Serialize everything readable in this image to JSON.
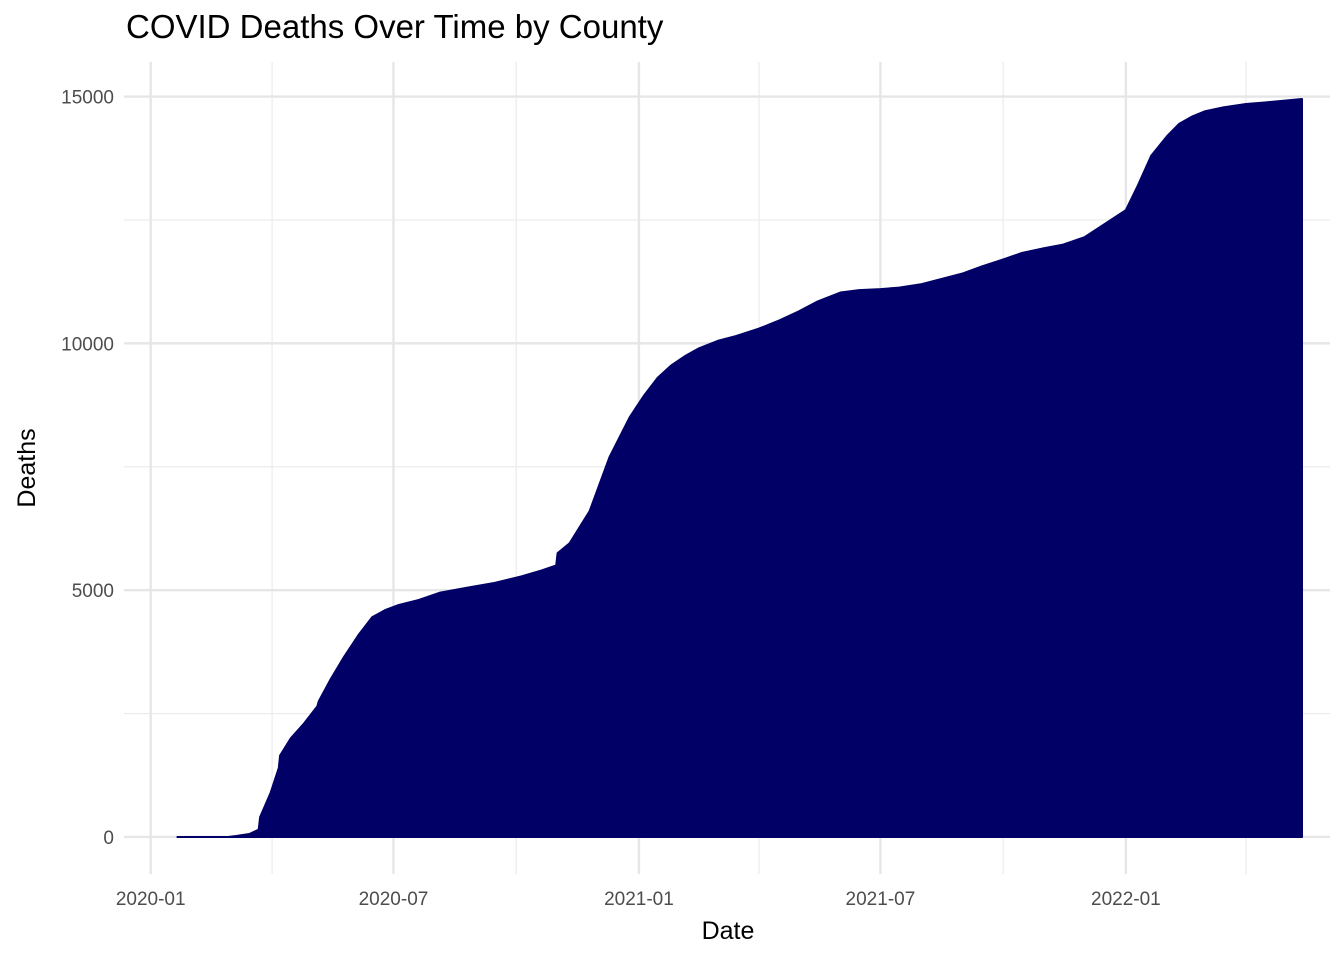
{
  "chart_data": {
    "type": "area",
    "title": "COVID Deaths Over Time by County",
    "xlabel": "Date",
    "ylabel": "Deaths",
    "x_ticks": [
      "2020-01",
      "2020-07",
      "2021-01",
      "2021-07",
      "2022-01"
    ],
    "x_minor_ticks": [
      "2020-04",
      "2020-10",
      "2021-04",
      "2021-10",
      "2022-04"
    ],
    "y_ticks": [
      0,
      5000,
      10000,
      15000
    ],
    "y_minor_ticks": [
      2500,
      7500,
      12500
    ],
    "xlim": [
      "2019-12-12",
      "2022-06-03"
    ],
    "ylim": [
      -750,
      15700
    ],
    "fill_color": "#000066",
    "grid": true,
    "legend": "none",
    "series": [
      {
        "x": [
          "2020-01-21",
          "2020-02-28",
          "2020-03-05",
          "2020-03-15",
          "2020-03-22",
          "2020-03-23",
          "2020-03-31",
          "2020-04-06",
          "2020-04-07",
          "2020-04-15",
          "2020-04-25",
          "2020-05-05",
          "2020-05-06",
          "2020-05-15",
          "2020-05-25",
          "2020-06-05",
          "2020-06-15",
          "2020-06-25",
          "2020-07-05",
          "2020-07-20",
          "2020-08-05",
          "2020-08-25",
          "2020-09-15",
          "2020-10-05",
          "2020-10-20",
          "2020-10-31",
          "2020-11-01",
          "2020-11-10",
          "2020-11-25",
          "2020-12-10",
          "2020-12-25",
          "2021-01-05",
          "2021-01-15",
          "2021-01-25",
          "2021-02-05",
          "2021-02-15",
          "2021-03-01",
          "2021-03-15",
          "2021-04-01",
          "2021-04-15",
          "2021-05-01",
          "2021-05-15",
          "2021-06-01",
          "2021-06-15",
          "2021-07-01",
          "2021-07-15",
          "2021-08-01",
          "2021-08-15",
          "2021-09-01",
          "2021-09-15",
          "2021-10-01",
          "2021-10-15",
          "2021-11-01",
          "2021-11-15",
          "2021-12-01",
          "2021-12-15",
          "2022-01-01",
          "2022-01-10",
          "2022-01-20",
          "2022-02-01",
          "2022-02-10",
          "2022-02-20",
          "2022-03-01",
          "2022-03-15",
          "2022-04-01",
          "2022-04-15",
          "2022-05-01",
          "2022-05-13"
        ],
        "values": [
          0,
          0,
          20,
          60,
          150,
          400,
          900,
          1400,
          1650,
          2000,
          2300,
          2650,
          2750,
          3200,
          3650,
          4100,
          4450,
          4600,
          4700,
          4800,
          4950,
          5050,
          5150,
          5280,
          5400,
          5500,
          5750,
          5950,
          6600,
          7700,
          8500,
          8950,
          9300,
          9550,
          9750,
          9900,
          10050,
          10150,
          10300,
          10450,
          10650,
          10850,
          11030,
          11080,
          11100,
          11130,
          11200,
          11300,
          11420,
          11560,
          11700,
          11830,
          11930,
          12000,
          12150,
          12400,
          12700,
          13200,
          13800,
          14200,
          14450,
          14600,
          14700,
          14780,
          14850,
          14880,
          14920,
          14950
        ]
      }
    ]
  }
}
